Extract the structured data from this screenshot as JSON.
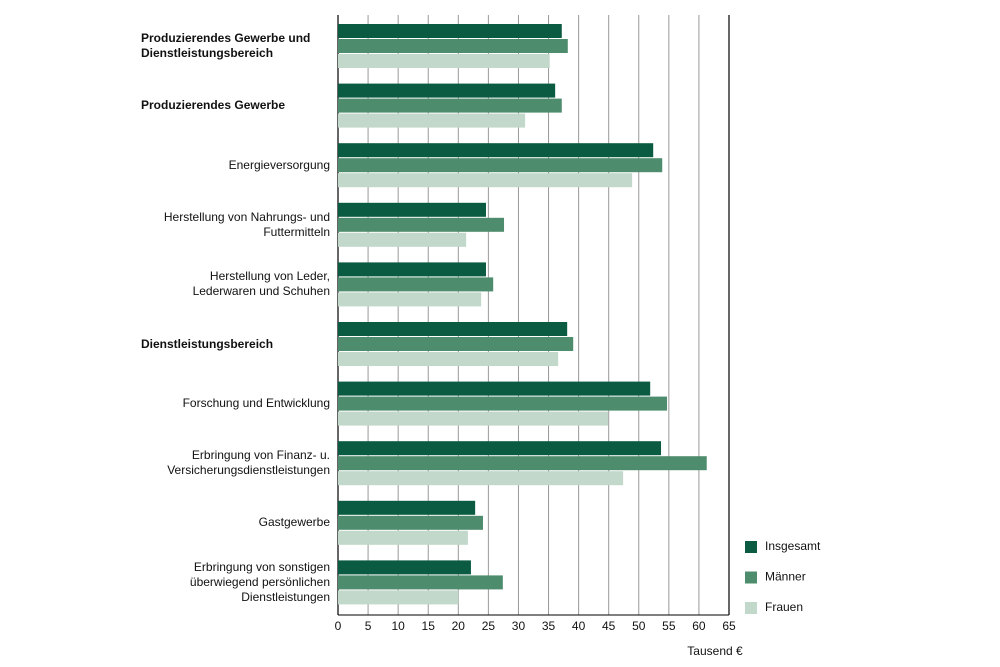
{
  "chart_data": {
    "type": "hbar",
    "categories": [
      "Produzierendes Gewerbe und\nDienstleistungsbereich",
      "Produzierendes Gewerbe",
      "Energieversorgung",
      "Herstellung von Nahrungs- und\nFuttermitteln",
      "Herstellung von Leder,\nLederwaren und Schuhen",
      "Dienstleistungsbereich",
      "Forschung und Entwicklung",
      "Erbringung von Finanz- u.\nVersicherungsdienstleistungen",
      "Gastgewerbe",
      "Erbringung von sonstigen\nüberwiegend persönlichen\nDienstleistungen"
    ],
    "category_bold": [
      true,
      true,
      false,
      false,
      false,
      true,
      false,
      false,
      false,
      false
    ],
    "series": [
      {
        "name": "Insgesamt",
        "color": "#0b5a42",
        "values": [
          37.2,
          36.1,
          52.4,
          24.6,
          24.6,
          38.1,
          51.9,
          53.7,
          22.8,
          22.1
        ]
      },
      {
        "name": "Männer",
        "color": "#4e8c6e",
        "values": [
          38.2,
          37.2,
          53.9,
          27.6,
          25.8,
          39.1,
          54.7,
          61.3,
          24.1,
          27.4
        ]
      },
      {
        "name": "Frauen",
        "color": "#c2d8ca",
        "values": [
          35.2,
          31.1,
          48.9,
          21.3,
          23.8,
          36.6,
          44.9,
          47.4,
          21.6,
          20.0
        ]
      }
    ],
    "xlabel": "Tausend €",
    "xlim": [
      0,
      65
    ],
    "xticks": [
      0,
      5,
      10,
      15,
      20,
      25,
      30,
      35,
      40,
      45,
      50,
      55,
      60,
      65
    ],
    "grid": true
  }
}
